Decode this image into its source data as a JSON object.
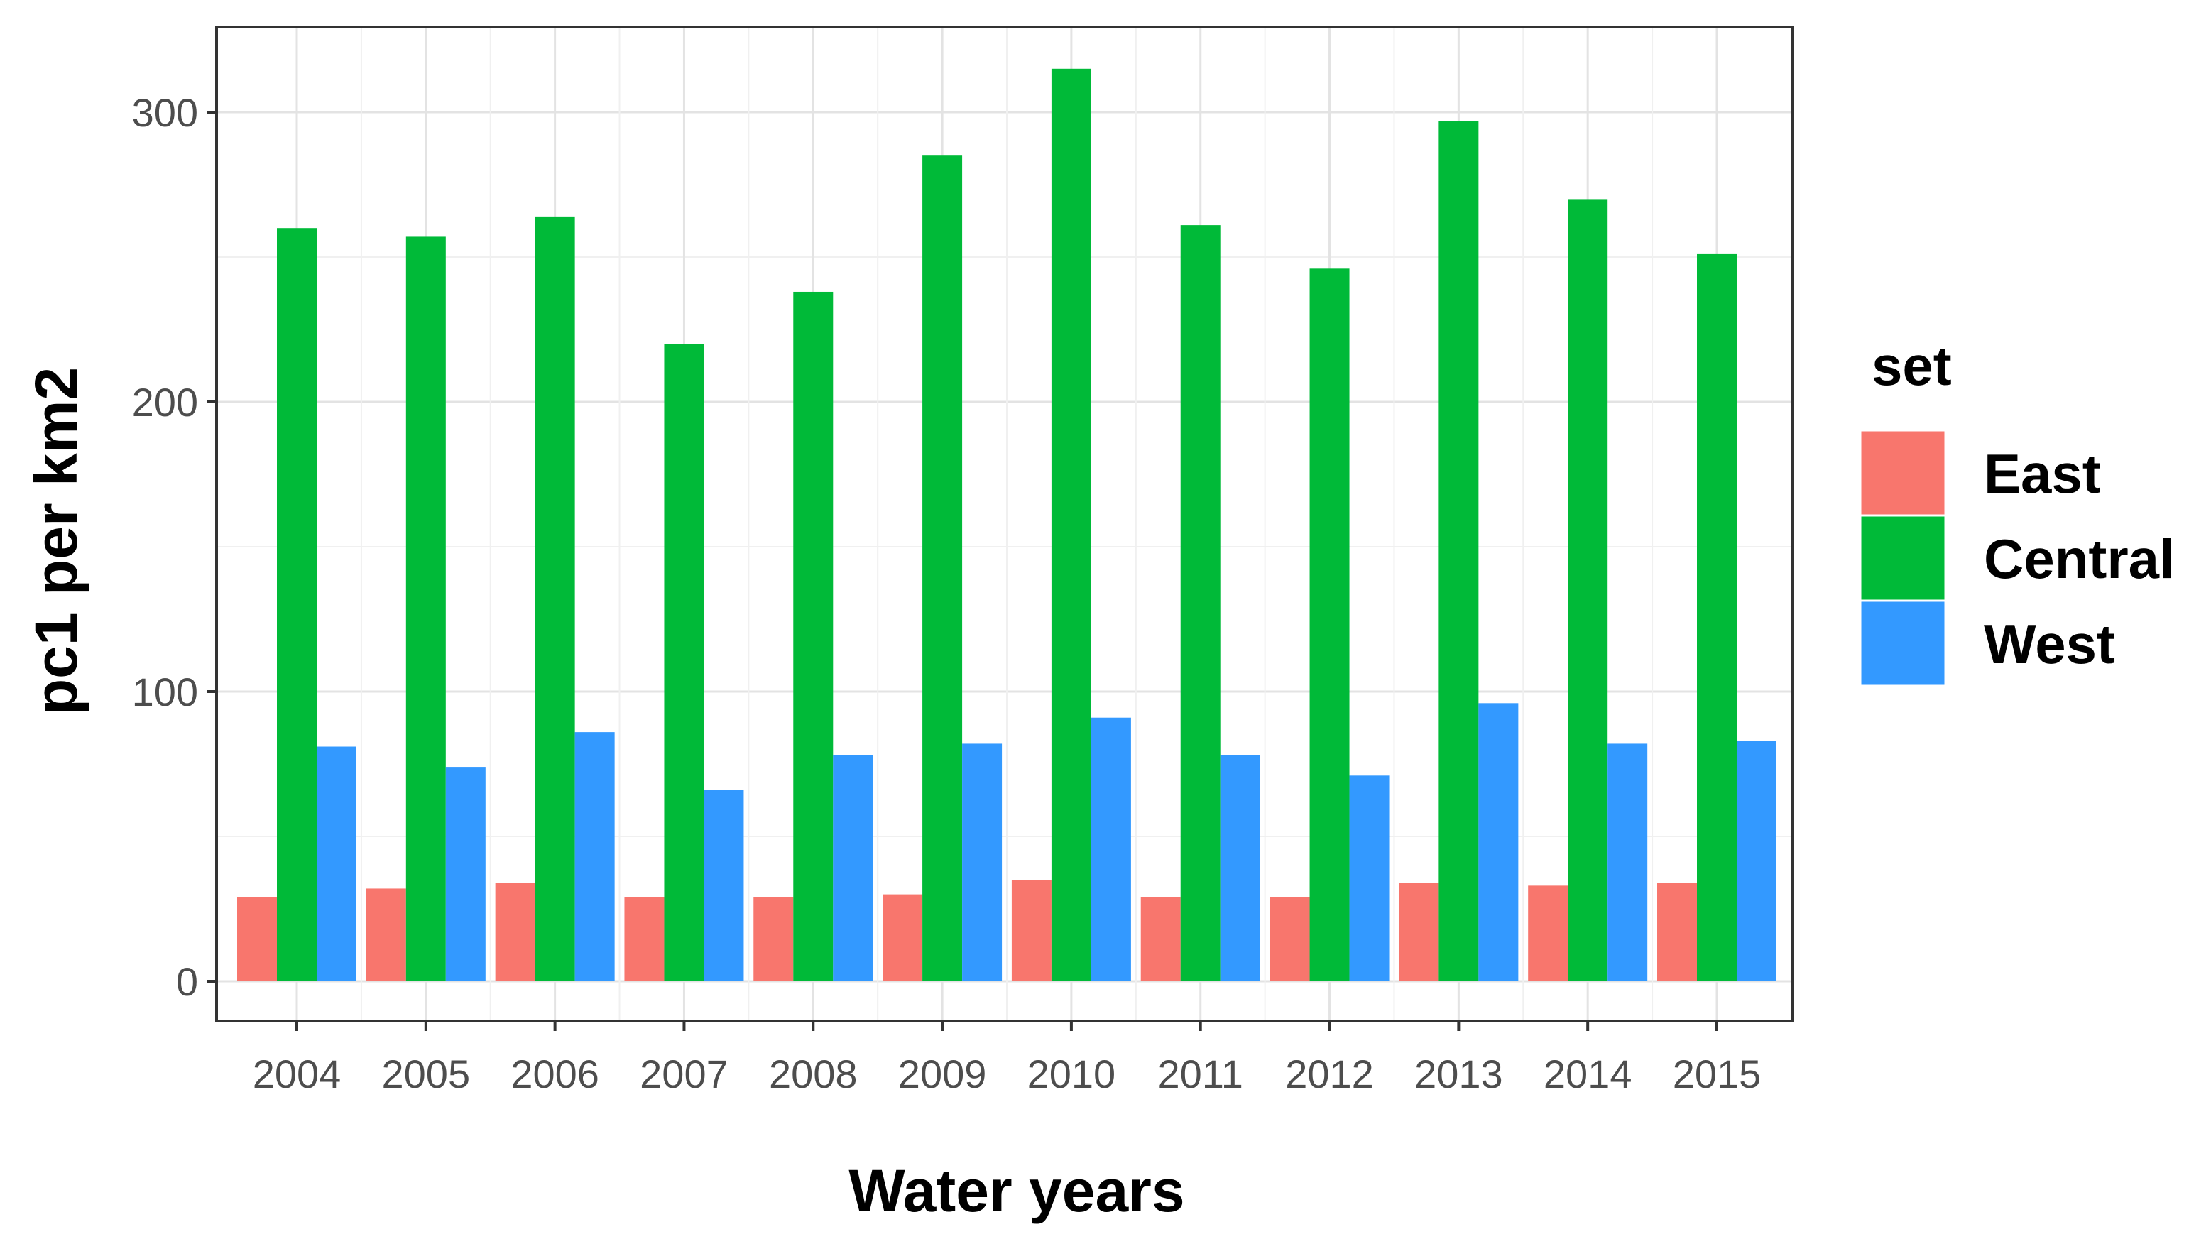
{
  "chart_data": {
    "type": "bar",
    "title": "",
    "xlabel": "Water years",
    "ylabel": "pc1 per km2",
    "ylim": [
      0,
      320
    ],
    "yticks": [
      0,
      100,
      200,
      300
    ],
    "grid": true,
    "legend": {
      "title": "set",
      "placement": "right"
    },
    "categories": [
      "2004",
      "2005",
      "2006",
      "2007",
      "2008",
      "2009",
      "2010",
      "2011",
      "2012",
      "2013",
      "2014",
      "2015"
    ],
    "series": [
      {
        "name": "East",
        "color": "#F8766D",
        "values": [
          29,
          32,
          34,
          29,
          29,
          30,
          35,
          29,
          29,
          34,
          33,
          34
        ]
      },
      {
        "name": "Central",
        "color": "#00BA38",
        "values": [
          260,
          257,
          264,
          220,
          238,
          285,
          315,
          261,
          246,
          297,
          270,
          251
        ]
      },
      {
        "name": "West",
        "color": "#3399FF",
        "values": [
          81,
          74,
          86,
          66,
          78,
          82,
          91,
          78,
          71,
          96,
          82,
          83
        ]
      }
    ]
  }
}
